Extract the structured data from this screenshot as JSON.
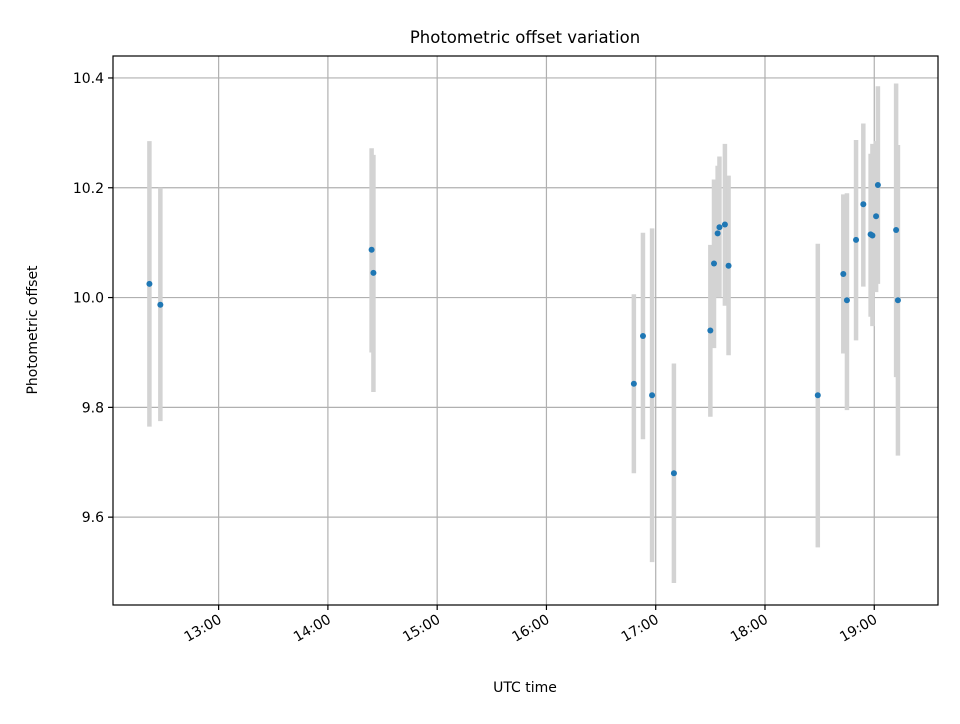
{
  "chart_data": {
    "type": "scatter",
    "title": "Photometric offset variation",
    "xlabel": "UTC time",
    "ylabel": "Photometric offset",
    "x_axis": "time",
    "xlim": [
      "12:02",
      "19:35"
    ],
    "ylim": [
      9.44,
      10.44
    ],
    "x_ticks": [
      "13:00",
      "14:00",
      "15:00",
      "16:00",
      "17:00",
      "18:00",
      "19:00"
    ],
    "y_ticks": [
      "9.6",
      "9.8",
      "10.0",
      "10.2",
      "10.4"
    ],
    "grid": true,
    "colors": {
      "points": "#1f77b4",
      "errorbars": "#d3d3d3",
      "grid": "#b0b0b0",
      "axes": "#000000"
    },
    "series": [
      {
        "points": [
          {
            "x": "12:22",
            "y": 10.025,
            "ylow": 9.765,
            "yhigh": 10.285
          },
          {
            "x": "12:28",
            "y": 9.987,
            "ylow": 9.775,
            "yhigh": 10.2
          },
          {
            "x": "14:24",
            "y": 10.087,
            "ylow": 9.9,
            "yhigh": 10.272
          },
          {
            "x": "14:25",
            "y": 10.045,
            "ylow": 9.828,
            "yhigh": 10.26
          },
          {
            "x": "16:48",
            "y": 9.843,
            "ylow": 9.68,
            "yhigh": 10.006
          },
          {
            "x": "16:53",
            "y": 9.93,
            "ylow": 9.742,
            "yhigh": 10.118
          },
          {
            "x": "16:58",
            "y": 9.822,
            "ylow": 9.518,
            "yhigh": 10.126
          },
          {
            "x": "17:10",
            "y": 9.68,
            "ylow": 9.48,
            "yhigh": 9.88
          },
          {
            "x": "17:30",
            "y": 9.94,
            "ylow": 9.783,
            "yhigh": 10.096
          },
          {
            "x": "17:32",
            "y": 10.062,
            "ylow": 9.908,
            "yhigh": 10.215
          },
          {
            "x": "17:34",
            "y": 10.117,
            "ylow": 10.0,
            "yhigh": 10.24
          },
          {
            "x": "17:35",
            "y": 10.128,
            "ylow": 10.0,
            "yhigh": 10.257
          },
          {
            "x": "17:38",
            "y": 10.133,
            "ylow": 9.985,
            "yhigh": 10.28
          },
          {
            "x": "17:40",
            "y": 10.058,
            "ylow": 9.895,
            "yhigh": 10.222
          },
          {
            "x": "18:29",
            "y": 9.822,
            "ylow": 9.545,
            "yhigh": 10.098
          },
          {
            "x": "18:43",
            "y": 10.043,
            "ylow": 9.898,
            "yhigh": 10.188
          },
          {
            "x": "18:45",
            "y": 9.995,
            "ylow": 9.795,
            "yhigh": 10.19
          },
          {
            "x": "18:50",
            "y": 10.105,
            "ylow": 9.922,
            "yhigh": 10.287
          },
          {
            "x": "18:54",
            "y": 10.17,
            "ylow": 10.02,
            "yhigh": 10.317
          },
          {
            "x": "18:58",
            "y": 10.115,
            "ylow": 9.965,
            "yhigh": 10.262
          },
          {
            "x": "18:59",
            "y": 10.113,
            "ylow": 9.948,
            "yhigh": 10.28
          },
          {
            "x": "19:01",
            "y": 10.148,
            "ylow": 10.01,
            "yhigh": 10.285
          },
          {
            "x": "19:02",
            "y": 10.205,
            "ylow": 10.025,
            "yhigh": 10.385
          },
          {
            "x": "19:12",
            "y": 10.123,
            "ylow": 9.855,
            "yhigh": 10.39
          },
          {
            "x": "19:13",
            "y": 9.995,
            "ylow": 9.712,
            "yhigh": 10.278
          }
        ]
      }
    ]
  }
}
